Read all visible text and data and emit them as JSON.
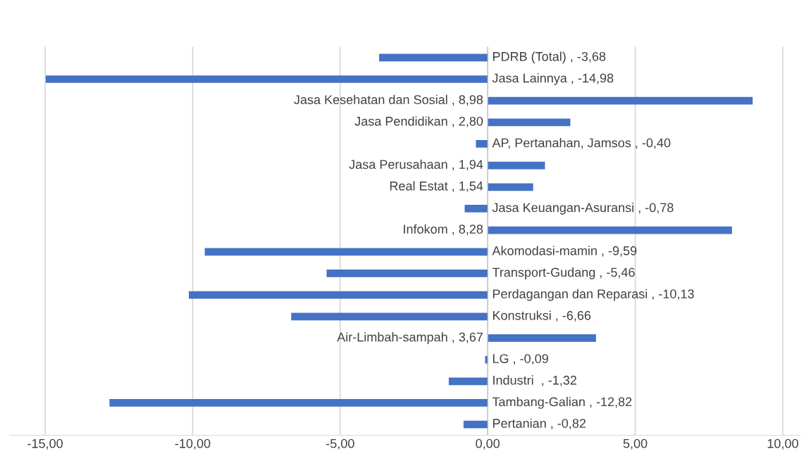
{
  "chart_data": {
    "type": "bar",
    "orientation": "horizontal",
    "color": "#4472c4",
    "categories": [
      null,
      null,
      null,
      null,
      null,
      null,
      null,
      null,
      null,
      null,
      null,
      null,
      null,
      null,
      null,
      null,
      null,
      null
    ],
    "values": [
      -3.68,
      -14.98,
      8.98,
      2.8,
      -0.4,
      1.94,
      1.54,
      -0.78,
      8.28,
      -9.59,
      -5.46,
      -10.13,
      -6.66,
      3.67,
      -0.09,
      -1.32,
      -12.82,
      -0.82
    ],
    "value_labels": [
      "PDRB (Total) , -3,68",
      "Jasa Lainnya , -14,98",
      "Jasa Kesehatan dan Sosial , 8,98",
      "Jasa Pendidikan , 2,80",
      "AP, Pertanahan, Jamsos , -0,40",
      "Jasa Perusahaan , 1,94",
      "Real Estat , 1,54",
      "Jasa Keuangan-Asuransi , -0,78",
      "Infokom , 8,28",
      "Akomodasi-mamin , -9,59",
      "Transport-Gudang , -5,46",
      "Perdagangan dan Reparasi , -10,13",
      "Konstruksi , -6,66",
      "Air-Limbah-sampah , 3,67",
      "LG , -0,09",
      "Industri  , -1,32",
      "Tambang-Galian , -12,82",
      "Pertanian , -0,82"
    ],
    "xlim": [
      -16.2,
      10.6
    ],
    "xticks": [
      {
        "value": -15,
        "label": "-15,00"
      },
      {
        "value": -10,
        "label": "-10,00"
      },
      {
        "value": -5,
        "label": "-5,00"
      },
      {
        "value": 0,
        "label": "0,00"
      },
      {
        "value": 5,
        "label": "5,00"
      },
      {
        "value": 10,
        "label": "10,00"
      }
    ],
    "grid": "x"
  }
}
